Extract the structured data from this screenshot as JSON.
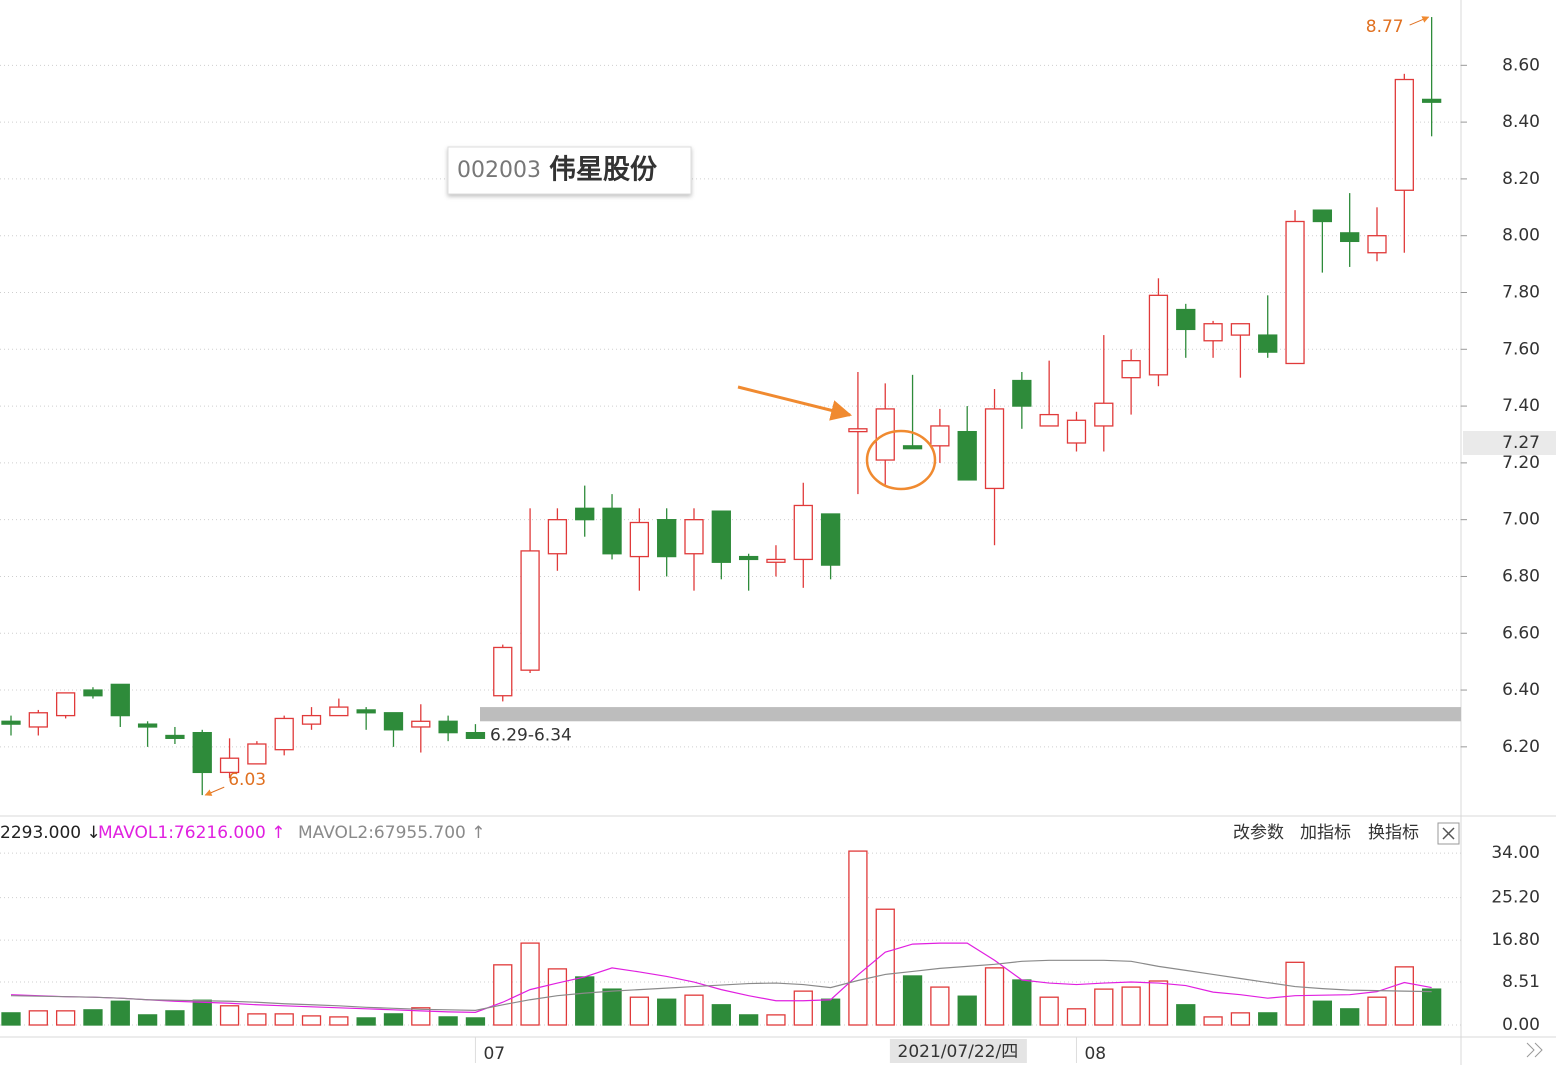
{
  "stock": {
    "code": "002003",
    "name": "伟星股份"
  },
  "toolbar": {
    "buttons": [
      "改参数",
      "加指标",
      "换指标"
    ]
  },
  "chart_data": [
    {
      "type": "candlestick",
      "categories": [
        null,
        null,
        null,
        null,
        null,
        null,
        null,
        null,
        null,
        null,
        null,
        null,
        null,
        null,
        null,
        null,
        null,
        "07",
        null,
        null,
        null,
        null,
        null,
        null,
        null,
        null,
        null,
        null,
        null,
        null,
        null,
        null,
        null,
        null,
        "2021/07/22/四",
        null,
        null,
        null,
        null,
        "08",
        null,
        null,
        null,
        null,
        null,
        null,
        null,
        null,
        null,
        null,
        null,
        null,
        null
      ],
      "open": [
        6.29,
        6.27,
        6.31,
        6.4,
        6.42,
        6.28,
        6.24,
        6.25,
        6.11,
        6.14,
        6.19,
        6.28,
        6.31,
        6.33,
        6.32,
        6.27,
        6.29,
        6.25,
        6.38,
        6.47,
        6.88,
        7.04,
        7.04,
        6.87,
        7.0,
        6.88,
        7.03,
        6.87,
        6.85,
        6.86,
        7.02,
        7.31,
        7.21,
        7.26,
        7.26,
        7.31,
        7.11,
        7.49,
        7.33,
        7.27,
        7.33,
        7.5,
        7.51,
        7.74,
        7.63,
        7.65,
        7.65,
        7.55,
        8.09,
        8.01,
        7.94,
        8.16,
        8.48
      ],
      "high": [
        6.31,
        6.33,
        6.39,
        6.41,
        6.42,
        6.29,
        6.27,
        6.26,
        6.23,
        6.22,
        6.31,
        6.34,
        6.37,
        6.34,
        6.32,
        6.35,
        6.31,
        6.28,
        6.56,
        7.04,
        7.04,
        7.12,
        7.09,
        7.04,
        7.04,
        7.04,
        7.03,
        6.88,
        6.91,
        7.13,
        7.02,
        7.52,
        7.48,
        7.51,
        7.39,
        7.4,
        7.46,
        7.52,
        7.56,
        7.38,
        7.65,
        7.6,
        7.85,
        7.76,
        7.7,
        7.69,
        7.79,
        8.09,
        8.09,
        8.15,
        8.1,
        8.57,
        8.77
      ],
      "low": [
        6.24,
        6.24,
        6.3,
        6.37,
        6.27,
        6.2,
        6.21,
        6.03,
        6.09,
        6.14,
        6.17,
        6.26,
        6.31,
        6.26,
        6.2,
        6.18,
        6.22,
        6.23,
        6.36,
        6.46,
        6.82,
        6.94,
        6.86,
        6.75,
        6.8,
        6.75,
        6.79,
        6.75,
        6.8,
        6.76,
        6.79,
        7.09,
        7.12,
        7.25,
        7.2,
        7.14,
        6.91,
        7.32,
        7.33,
        7.24,
        7.24,
        7.37,
        7.47,
        7.57,
        7.57,
        7.5,
        7.57,
        7.55,
        7.87,
        7.89,
        7.91,
        7.94,
        8.35
      ],
      "close": [
        6.28,
        6.32,
        6.39,
        6.38,
        6.31,
        6.27,
        6.23,
        6.11,
        6.16,
        6.21,
        6.3,
        6.31,
        6.34,
        6.32,
        6.26,
        6.29,
        6.25,
        6.23,
        6.55,
        6.89,
        7.0,
        7.0,
        6.88,
        6.99,
        6.87,
        7.0,
        6.85,
        6.86,
        6.86,
        7.05,
        6.84,
        7.32,
        7.39,
        7.25,
        7.33,
        7.14,
        7.39,
        7.4,
        7.37,
        7.35,
        7.41,
        7.56,
        7.79,
        7.67,
        7.69,
        7.69,
        7.59,
        8.05,
        8.05,
        7.98,
        8.0,
        8.55,
        8.47
      ],
      "up_color": "#e03a3a",
      "down_color": "#2e8b3a",
      "ylim": [
        5.96,
        8.83
      ],
      "yticks": [
        {
          "value": 6.2,
          "label": "6.20"
        },
        {
          "value": 6.4,
          "label": "6.40"
        },
        {
          "value": 6.6,
          "label": "6.60"
        },
        {
          "value": 6.8,
          "label": "6.80"
        },
        {
          "value": 7.0,
          "label": "7.00"
        },
        {
          "value": 7.2,
          "label": "7.20"
        },
        {
          "value": 7.4,
          "label": "7.40"
        },
        {
          "value": 7.6,
          "label": "7.60"
        },
        {
          "value": 7.8,
          "label": "7.80"
        },
        {
          "value": 8.0,
          "label": "8.00"
        },
        {
          "value": 8.2,
          "label": "8.20"
        },
        {
          "value": 8.4,
          "label": "8.40"
        },
        {
          "value": 8.6,
          "label": "8.60"
        }
      ],
      "grid": true,
      "band": {
        "label": "6.29-6.34",
        "low": 6.29,
        "high": 6.34,
        "color": "#bdbdbd"
      },
      "cursor": {
        "value": 7.27
      },
      "annotation_color": "#e07020"
    },
    {
      "type": "bar",
      "legend": [
        "2293.000 ↓",
        "MAVOL1:76216.000 ↑",
        "MAVOL2:67955.700 ↑"
      ],
      "values": [
        2.4,
        2.8,
        2.8,
        3.0,
        4.7,
        2.0,
        2.8,
        4.9,
        3.8,
        2.2,
        2.2,
        1.8,
        1.6,
        1.4,
        2.2,
        3.4,
        1.6,
        1.4,
        11.9,
        16.2,
        11.1,
        9.5,
        7.1,
        5.5,
        5.1,
        5.9,
        4.0,
        2.0,
        2.0,
        6.7,
        5.1,
        34.4,
        22.9,
        9.7,
        7.5,
        5.7,
        11.3,
        8.9,
        5.5,
        3.2,
        7.1,
        7.5,
        8.7,
        4.0,
        1.6,
        2.4,
        2.4,
        12.4,
        4.7,
        3.2,
        5.5,
        11.5,
        7.1
      ],
      "series": [
        {
          "name": "MAVOL1",
          "color": "#e020e0",
          "values": [
            6.0,
            5.8,
            5.6,
            5.5,
            5.3,
            5.0,
            4.7,
            4.5,
            4.3,
            4.0,
            3.8,
            3.6,
            3.4,
            3.2,
            3.0,
            2.8,
            2.6,
            2.5,
            4.5,
            7.0,
            8.3,
            9.5,
            11.3,
            10.5,
            9.6,
            8.5,
            7.0,
            5.8,
            4.8,
            4.8,
            5.0,
            9.9,
            14.4,
            16.0,
            16.2,
            16.2,
            12.8,
            8.9,
            8.3,
            8.0,
            8.3,
            8.5,
            8.3,
            7.8,
            6.5,
            6.0,
            5.3,
            5.8,
            5.9,
            6.0,
            6.6,
            8.4,
            7.4
          ]
        },
        {
          "name": "MAVOL2",
          "color": "#8a8a8a",
          "values": [
            5.8,
            5.7,
            5.6,
            5.5,
            5.3,
            5.0,
            4.9,
            4.8,
            4.7,
            4.5,
            4.2,
            4.0,
            3.8,
            3.5,
            3.3,
            3.1,
            3.0,
            2.9,
            4.0,
            5.0,
            5.8,
            6.3,
            6.7,
            7.0,
            7.3,
            7.6,
            7.9,
            8.2,
            8.3,
            8.0,
            7.4,
            8.8,
            10.0,
            10.6,
            11.2,
            11.6,
            12.0,
            12.6,
            12.8,
            12.8,
            12.8,
            12.6,
            11.6,
            10.8,
            10.0,
            9.2,
            8.4,
            7.6,
            7.2,
            6.9,
            6.8,
            6.7,
            6.6
          ]
        }
      ],
      "ylim": [
        0,
        36
      ],
      "yticks": [
        {
          "value": 0,
          "label": "0.00"
        },
        {
          "value": 8.51,
          "label": "8.51"
        },
        {
          "value": 16.8,
          "label": "16.80"
        },
        {
          "value": 25.2,
          "label": "25.20"
        },
        {
          "value": 34,
          "label": "34.00"
        }
      ],
      "grid": true
    }
  ]
}
